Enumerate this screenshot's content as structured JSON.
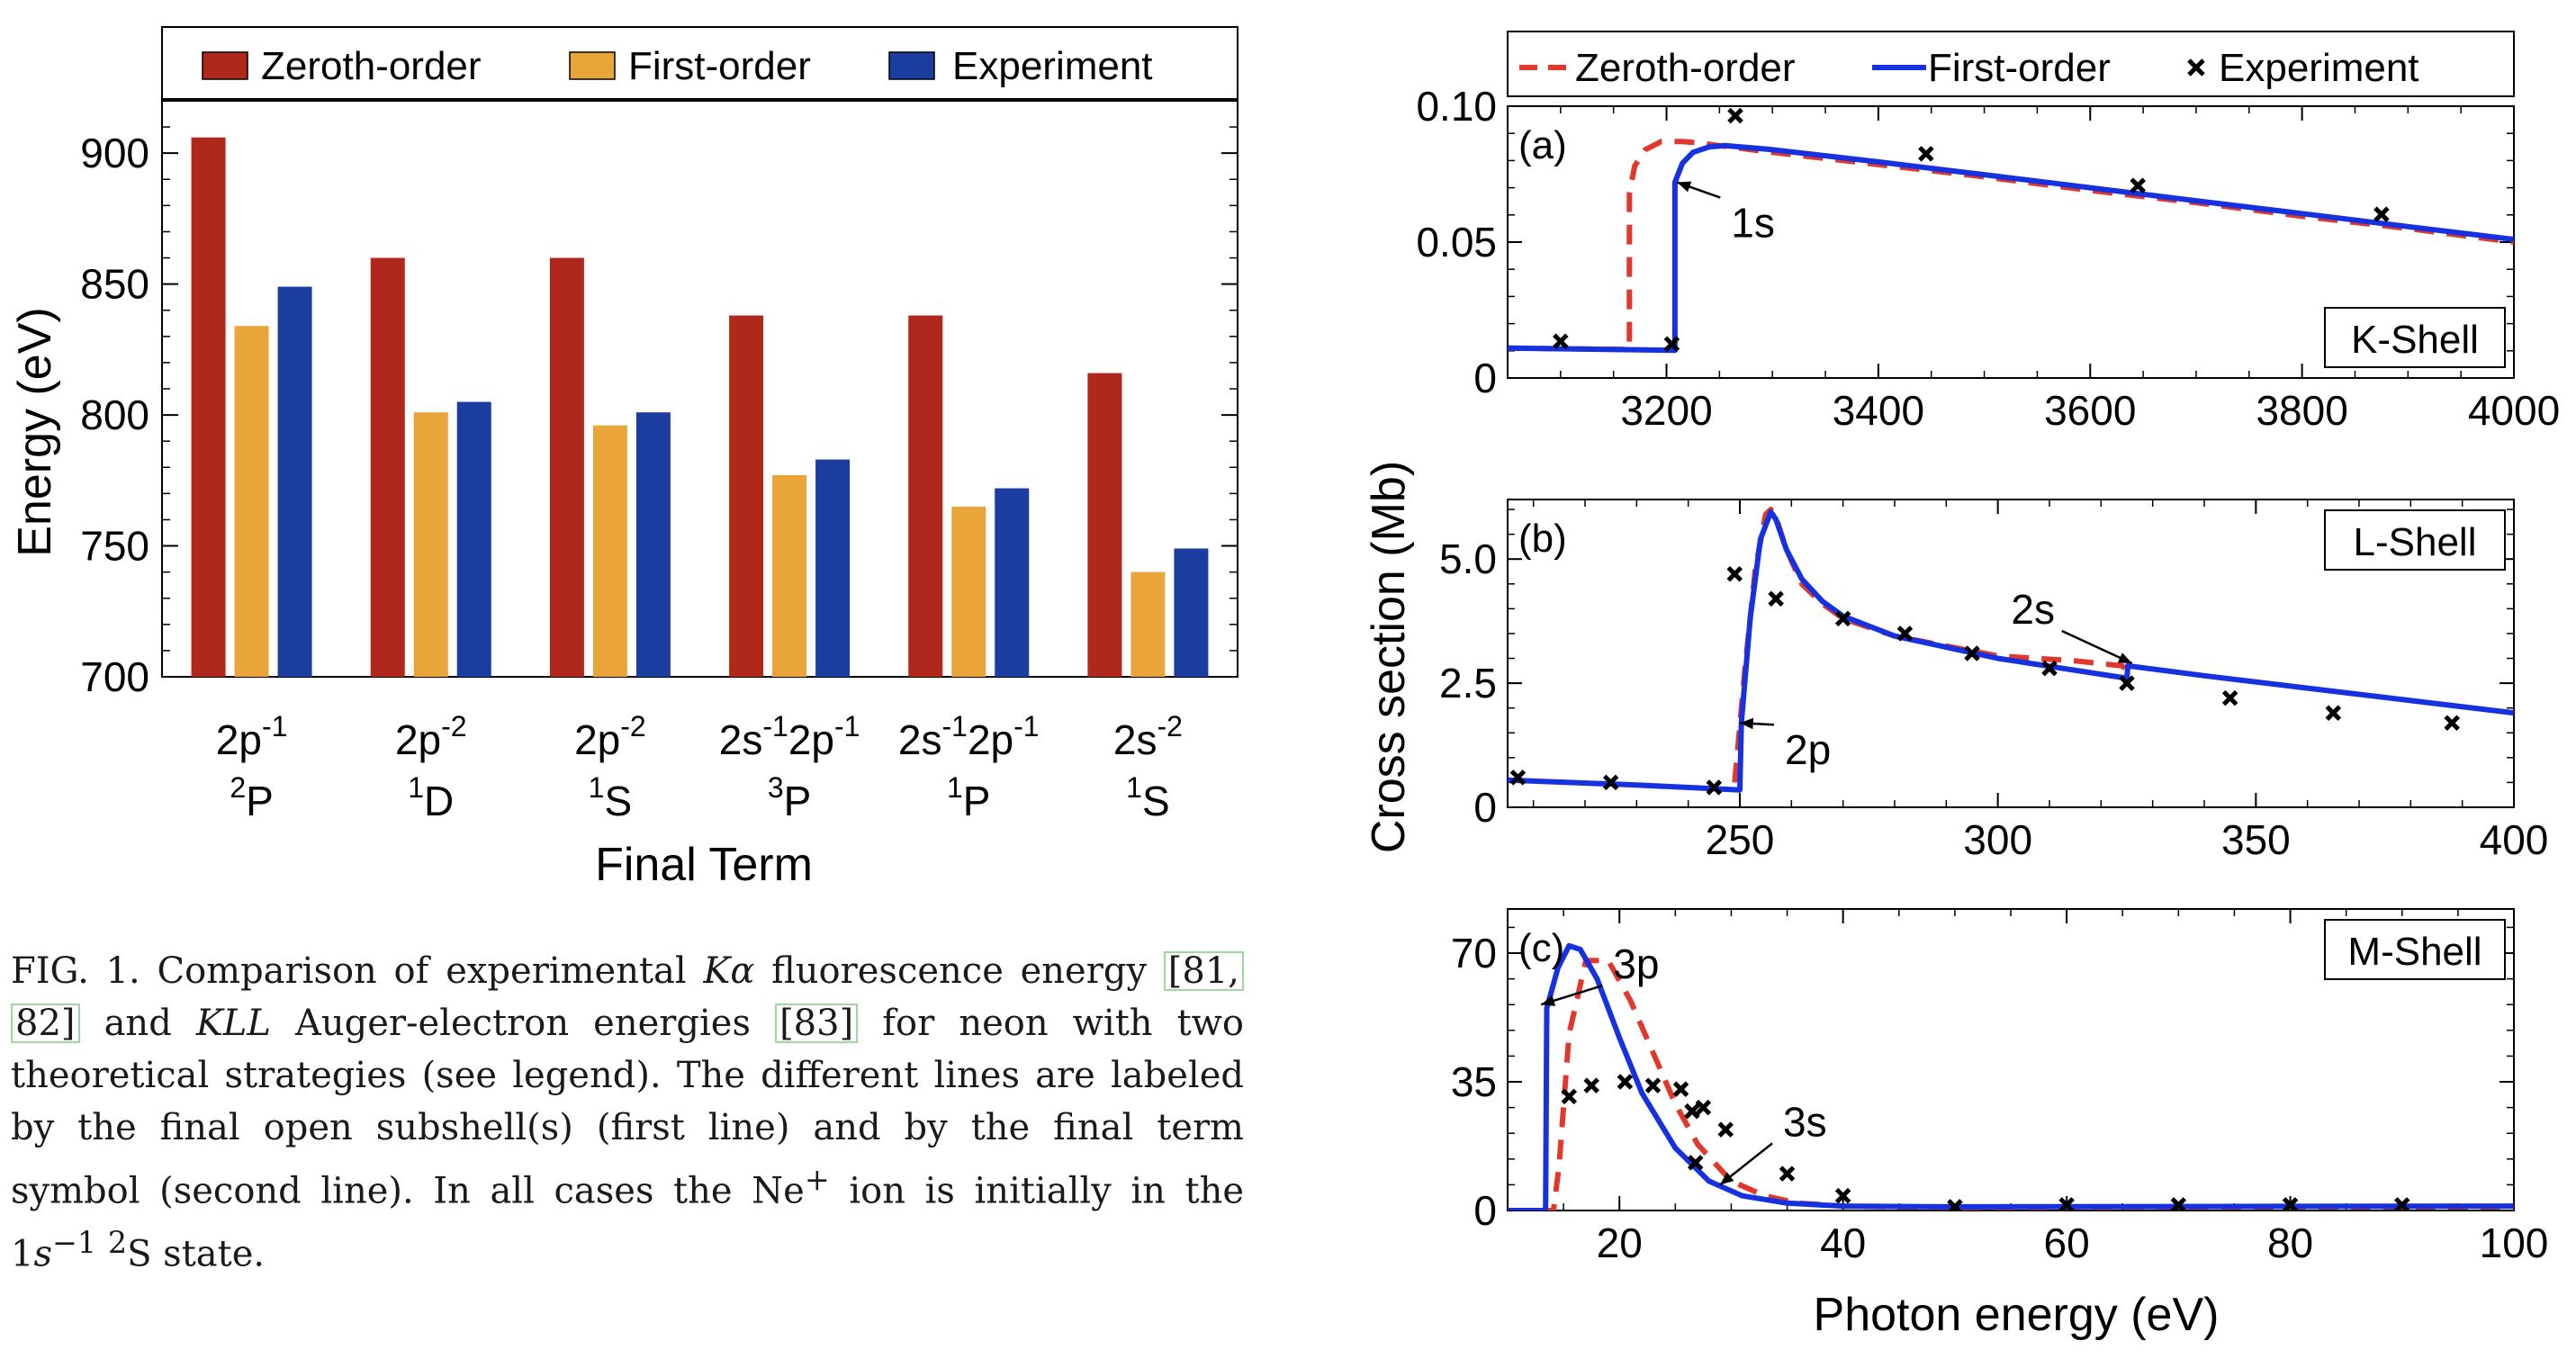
{
  "colors": {
    "zeroth": "#b0271c",
    "first": "#e9a53a",
    "experiment": "#1c3da0",
    "curve_zeroth": "#e2382b",
    "curve_first": "#1631e0"
  },
  "chart_data": [
    {
      "type": "bar",
      "legend": [
        "Zeroth-order",
        "First-order",
        "Experiment"
      ],
      "ylabel": "Energy (eV)",
      "xlabel": "Final Term",
      "ylim": [
        700,
        920
      ],
      "yticks": [
        "700",
        "750",
        "800",
        "850",
        "900"
      ],
      "categories": [
        {
          "sub": "2p",
          "sub_sup": "-1",
          "term_sup": "2",
          "term": "P"
        },
        {
          "sub": "2p",
          "sub_sup": "-2",
          "term_sup": "1",
          "term": "D"
        },
        {
          "sub": "2p",
          "sub_sup": "-2",
          "term_sup": "1",
          "term": "S"
        },
        {
          "sub": "2s",
          "sub_sup": "-1",
          "sub2": "2p",
          "sub2_sup": "-1",
          "term_sup": "3",
          "term": "P"
        },
        {
          "sub": "2s",
          "sub_sup": "-1",
          "sub2": "2p",
          "sub2_sup": "-1",
          "term_sup": "1",
          "term": "P"
        },
        {
          "sub": "2s",
          "sub_sup": "-2",
          "term_sup": "1",
          "term": "S"
        }
      ],
      "series": [
        {
          "name": "Zeroth-order",
          "values": [
            906,
            860,
            860,
            838,
            838,
            816
          ]
        },
        {
          "name": "First-order",
          "values": [
            834,
            801,
            796,
            777,
            765,
            740
          ]
        },
        {
          "name": "Experiment",
          "values": [
            849,
            805,
            801,
            783,
            772,
            749
          ]
        }
      ]
    },
    {
      "type": "line",
      "title": "(a)",
      "label": "K-Shell",
      "legend": [
        "Zeroth-order",
        "First-order",
        "Experiment"
      ],
      "xlim": [
        3050,
        4000
      ],
      "ylim": [
        0,
        0.1
      ],
      "xticks": [
        "3200",
        "3400",
        "3600",
        "3800",
        "4000"
      ],
      "yticks": [
        "0",
        "0.05",
        "0.10"
      ],
      "annotations": [
        {
          "text": "1s",
          "x": 3210,
          "y": 0.072
        }
      ],
      "series": [
        {
          "name": "Zeroth-order",
          "style": "dashed",
          "x": [
            3050,
            3165,
            3165,
            3170,
            3180,
            3195,
            3215,
            3230,
            3260,
            3300,
            3400,
            3500,
            3600,
            3700,
            3800,
            3900,
            4000
          ],
          "y": [
            0.011,
            0.0105,
            0.068,
            0.078,
            0.084,
            0.087,
            0.087,
            0.0865,
            0.085,
            0.083,
            0.0785,
            0.074,
            0.069,
            0.0645,
            0.0595,
            0.055,
            0.05
          ]
        },
        {
          "name": "First-order",
          "style": "solid",
          "x": [
            3050,
            3208,
            3208,
            3215,
            3225,
            3240,
            3255,
            3270,
            3300,
            3400,
            3500,
            3600,
            3700,
            3800,
            3900,
            4000
          ],
          "y": [
            0.011,
            0.0102,
            0.072,
            0.079,
            0.083,
            0.085,
            0.0855,
            0.085,
            0.084,
            0.0795,
            0.0748,
            0.07,
            0.0652,
            0.0605,
            0.0557,
            0.051
          ]
        },
        {
          "name": "Experiment",
          "style": "marker",
          "x": [
            3100,
            3205,
            3265,
            3445,
            3645,
            3875
          ],
          "y": [
            0.0135,
            0.0125,
            0.0965,
            0.0825,
            0.0708,
            0.0602
          ]
        }
      ]
    },
    {
      "type": "line",
      "title": "(b)",
      "label": "L-Shell",
      "ylabel": "Cross section (Mb)",
      "xlim": [
        205,
        400
      ],
      "ylim": [
        0,
        6.2
      ],
      "xticks": [
        "250",
        "300",
        "350",
        "400"
      ],
      "yticks": [
        "0",
        "2.5",
        "5.0"
      ],
      "annotations": [
        {
          "text": "2p",
          "x": 250,
          "y": 1.7
        },
        {
          "text": "2s",
          "x": 326,
          "y": 2.9
        }
      ],
      "series": [
        {
          "name": "Zeroth-order",
          "style": "dashed",
          "x": [
            249,
            251,
            253,
            255,
            256,
            257,
            259,
            262,
            266,
            270,
            280,
            300,
            315,
            324,
            326
          ],
          "y": [
            0.5,
            2.8,
            4.8,
            5.9,
            6.0,
            5.85,
            5.2,
            4.5,
            4.1,
            3.8,
            3.45,
            3.05,
            2.95,
            2.85,
            2.7
          ]
        },
        {
          "name": "First-order",
          "style": "solid",
          "x": [
            205,
            230,
            250,
            250.3,
            252,
            254,
            256,
            257,
            259,
            262,
            266,
            270,
            280,
            300,
            325,
            325.2,
            340,
            360,
            380,
            400
          ],
          "y": [
            0.55,
            0.45,
            0.35,
            1.7,
            3.8,
            5.4,
            5.95,
            5.8,
            5.2,
            4.6,
            4.15,
            3.85,
            3.45,
            3.0,
            2.6,
            2.85,
            2.65,
            2.4,
            2.15,
            1.9
          ]
        },
        {
          "name": "Experiment",
          "style": "marker",
          "x": [
            207,
            225,
            245,
            249,
            257,
            270,
            282,
            295,
            310,
            325,
            345,
            365,
            388
          ],
          "y": [
            0.6,
            0.5,
            0.4,
            4.7,
            4.2,
            3.8,
            3.5,
            3.1,
            2.8,
            2.5,
            2.2,
            1.9,
            1.7
          ]
        }
      ]
    },
    {
      "type": "line",
      "title": "(c)",
      "label": "M-Shell",
      "xlabel": "Photon energy (eV)",
      "xlim": [
        10,
        100
      ],
      "ylim": [
        0,
        82
      ],
      "xticks": [
        "20",
        "40",
        "60",
        "80",
        "100"
      ],
      "yticks": [
        "0",
        "35",
        "70"
      ],
      "annotations": [
        {
          "text": "3p",
          "x": 13,
          "y": 56
        },
        {
          "text": "3s",
          "x": 29,
          "y": 7
        }
      ],
      "series": [
        {
          "name": "Zeroth-order",
          "style": "dashed",
          "x": [
            10,
            14.1,
            14.6,
            15.5,
            17,
            19,
            21,
            23,
            25,
            27,
            30,
            33,
            36,
            40,
            50,
            100
          ],
          "y": [
            0,
            0,
            12,
            48,
            68,
            68,
            57,
            43,
            29,
            18,
            8,
            4,
            2,
            1.2,
            0.8,
            1
          ]
        },
        {
          "name": "First-order",
          "style": "solid",
          "x": [
            10,
            13.4,
            13.5,
            14.5,
            15.5,
            16.5,
            18,
            20,
            22,
            25,
            28,
            31,
            35,
            40,
            50,
            100
          ],
          "y": [
            0,
            0,
            55,
            66,
            72,
            71,
            63,
            47,
            32,
            17,
            8,
            4,
            2,
            1.2,
            1,
            1.2
          ]
        },
        {
          "name": "Experiment",
          "style": "marker",
          "x": [
            15.5,
            17.5,
            20.5,
            23,
            25.5,
            26.5,
            27.5,
            29.5,
            26.8,
            35,
            40,
            50,
            60,
            70,
            80,
            90
          ],
          "y": [
            31,
            34,
            35,
            34,
            33,
            27,
            28,
            22,
            13,
            10,
            4,
            1,
            1.5,
            1.5,
            1.5,
            1.5
          ]
        }
      ]
    }
  ],
  "caption": {
    "prefix": "FIG. 1. Comparison of experimental ",
    "kalpha": "Kα",
    "mid1": " fluorescence energy ",
    "ref1": "[81,",
    "ref2": "82]",
    "mid2": " and ",
    "kll": "KLL",
    "mid3": " Auger-electron energies ",
    "ref3": "[83]",
    "mid4": " for neon with two theoretical strategies (see legend). The different lines are labeled by the final open subshell(s) (first line) and by the final term symbol (second line). In all cases the Ne",
    "ion_sup": "+",
    "mid5": " ion is initially in the 1",
    "s_var": "s",
    "s_sup": "−1",
    "state_sup": "2",
    "suffix": "S state."
  }
}
